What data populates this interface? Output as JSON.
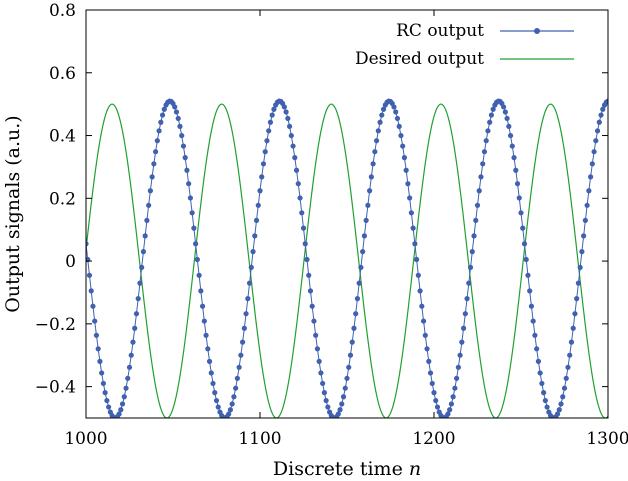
{
  "chart_data": {
    "type": "line",
    "title": "",
    "xlabel": "Discrete time",
    "xlabel_var": "n",
    "ylabel": "Output signals (a.u.)",
    "xlim": [
      1000,
      1300
    ],
    "ylim": [
      -0.5,
      0.8
    ],
    "x_ticks": [
      1000,
      1100,
      1200,
      1300
    ],
    "x_tick_labels": [
      "1000",
      "1100",
      "1200",
      "1300"
    ],
    "y_ticks": [
      -0.4,
      -0.2,
      0,
      0.2,
      0.4,
      0.6,
      0.8
    ],
    "y_tick_labels": [
      "−0.4",
      "−0.2",
      "0",
      "0.2",
      "0.4",
      "0.6",
      "0.8"
    ],
    "grid": false,
    "legend_position": "top-right",
    "series": [
      {
        "name": "RC output",
        "color": "#4060b0",
        "style": "line-with-markers",
        "model": {
          "amplitude": 0.505,
          "offset": 0.005,
          "period": 63,
          "phase_x": 1001,
          "start_direction": "down"
        },
        "x_range": [
          1000,
          1300
        ]
      },
      {
        "name": "Desired output",
        "color": "#20a030",
        "style": "line",
        "model": {
          "amplitude": 0.5,
          "offset": 0,
          "period": 63,
          "peak_x": 1015
        },
        "x_range": [
          1000,
          1300
        ]
      }
    ]
  }
}
